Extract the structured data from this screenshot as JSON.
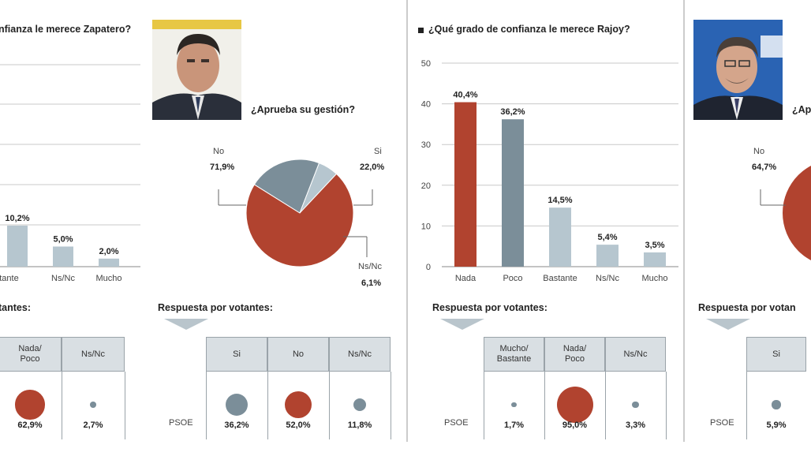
{
  "colors": {
    "red": "#b1432f",
    "slate": "#7b8e99",
    "light": "#b6c6cf",
    "grid": "#c8c8c8"
  },
  "panel1": {
    "title": "¿Qué grado de confianza le merece Zapatero?",
    "title_visible": "nfianza le merece Zapatero?",
    "photo": "zapatero-photo",
    "bars": [
      {
        "label": "Bastante",
        "visible_label": "Bastante",
        "value": 10.2,
        "text": "10,2%"
      },
      {
        "label": "Ns/Nc",
        "visible_label": "Ns/Nc",
        "value": 5.0,
        "text": "5,0%"
      },
      {
        "label": "Mucho",
        "visible_label": "Mucho",
        "value": 2.0,
        "text": "2,0%"
      }
    ],
    "resp_title": "Respuesta por votantes:",
    "resp_visible": "tantes:",
    "table": {
      "headers": [
        "Nada/\nPoco",
        "Ns/Nc"
      ],
      "values": [
        {
          "text": "62,9%",
          "v": 62.9
        },
        {
          "text": "2,7%",
          "v": 2.7
        }
      ]
    }
  },
  "panel2": {
    "question": "¿Aprueba su gestión?",
    "pie": [
      {
        "label": "No",
        "text": "71,9%",
        "value": 71.9
      },
      {
        "label": "Si",
        "text": "22,0%",
        "value": 22.0
      },
      {
        "label": "Ns/Nc",
        "text": "6,1%",
        "value": 6.1
      }
    ],
    "resp_title": "Respuesta por votantes:",
    "table": {
      "headers": [
        "Si",
        "No",
        "Ns/Nc"
      ],
      "row_label": "PSOE",
      "values": [
        {
          "text": "36,2%",
          "v": 36.2
        },
        {
          "text": "52,0%",
          "v": 52.0
        },
        {
          "text": "11,8%",
          "v": 11.8
        }
      ]
    }
  },
  "panel3": {
    "title": "¿Qué grado de confianza le merece Rajoy?",
    "chart_data": {
      "type": "bar",
      "title": "¿Qué grado de confianza le merece Rajoy?",
      "categories": [
        "Nada",
        "Poco",
        "Bastante",
        "Ns/Nc",
        "Mucho"
      ],
      "values": [
        40.4,
        36.2,
        14.5,
        5.4,
        3.5
      ],
      "labels": [
        "40,4%",
        "36,2%",
        "14,5%",
        "5,4%",
        "3,5%"
      ],
      "yticks": [
        "0",
        "10",
        "20",
        "30",
        "40",
        "50"
      ],
      "ylim": [
        0,
        50
      ]
    },
    "resp_title": "Respuesta por votantes:",
    "table": {
      "headers": [
        "Mucho/\nBastante",
        "Nada/\nPoco",
        "Ns/Nc"
      ],
      "row_label": "PSOE",
      "values": [
        {
          "text": "1,7%",
          "v": 1.7
        },
        {
          "text": "95,0%",
          "v": 95.0
        },
        {
          "text": "3,3%",
          "v": 3.3
        }
      ]
    }
  },
  "panel4": {
    "question": "¿Ap",
    "pie": [
      {
        "label": "No",
        "text": "64,7%",
        "value": 64.7
      }
    ],
    "resp_title": "Respuesta por votan",
    "table": {
      "headers": [
        "Si"
      ],
      "row_label": "PSOE",
      "values": [
        {
          "text": "5,9%",
          "v": 5.9
        }
      ]
    }
  }
}
